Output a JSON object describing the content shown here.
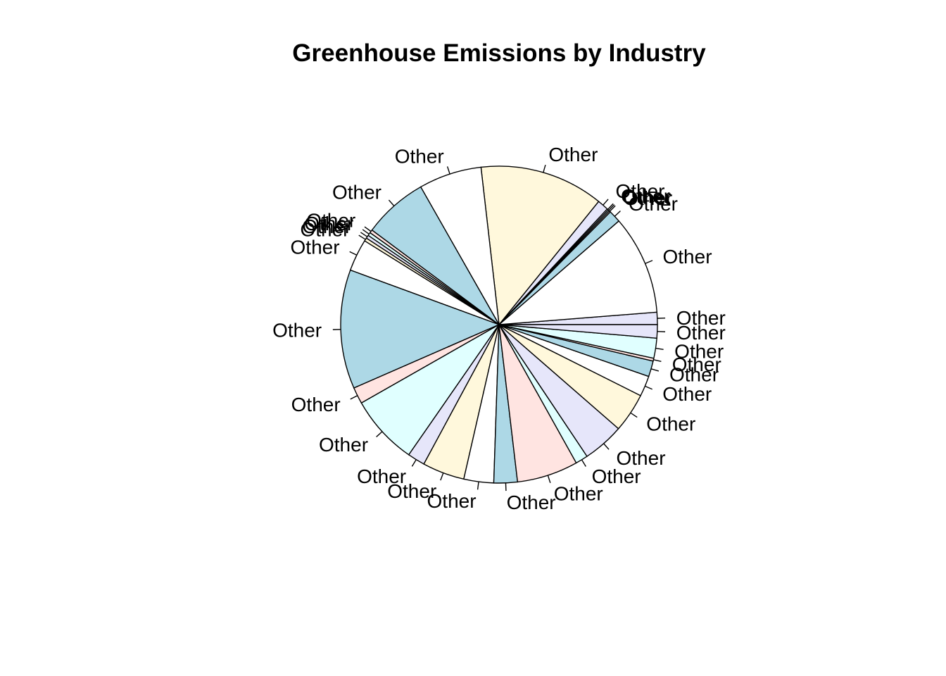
{
  "chart_data": {
    "type": "pie",
    "title": "Greenhouse Emissions by Industry",
    "start_angle_deg": 0,
    "direction": "counterclockwise",
    "palette": [
      "#FFFFFF",
      "#ADD8E6",
      "#FFE4E1",
      "#E0FFFF",
      "#E6E6FA",
      "#FFF8DC"
    ],
    "slices": [
      {
        "label": "Other",
        "value": 0.0115,
        "color": "#E6E6FA"
      },
      {
        "label": "Other",
        "value": 0.0925,
        "color": "#FFFFFF"
      },
      {
        "label": "Other",
        "value": 0.0115,
        "color": "#ADD8E6"
      },
      {
        "label": "Other",
        "value": 0.0013,
        "color": "#FFE4E1"
      },
      {
        "label": "Other",
        "value": 0.0013,
        "color": "#E0FFFF"
      },
      {
        "label": "Other",
        "value": 0.0013,
        "color": "#E6E6FA"
      },
      {
        "label": "Other",
        "value": 0.0105,
        "color": "#E6E6FA"
      },
      {
        "label": "Other",
        "value": 0.1159,
        "color": "#FFF8DC"
      },
      {
        "label": "Other",
        "value": 0.0588,
        "color": "#FFFFFF"
      },
      {
        "label": "Other",
        "value": 0.0604,
        "color": "#ADD8E6"
      },
      {
        "label": "Other",
        "value": 0.003,
        "color": "#FFE4E1"
      },
      {
        "label": "Other",
        "value": 0.003,
        "color": "#E0FFFF"
      },
      {
        "label": "Other",
        "value": 0.003,
        "color": "#E6E6FA"
      },
      {
        "label": "Other",
        "value": 0.003,
        "color": "#FFF8DC"
      },
      {
        "label": "Other",
        "value": 0.03,
        "color": "#FFFFFF"
      },
      {
        "label": "Other",
        "value": 0.1113,
        "color": "#ADD8E6"
      },
      {
        "label": "Other",
        "value": 0.0154,
        "color": "#FFE4E1"
      },
      {
        "label": "Other",
        "value": 0.0652,
        "color": "#E0FFFF"
      },
      {
        "label": "Other",
        "value": 0.0163,
        "color": "#E6E6FA"
      },
      {
        "label": "Other",
        "value": 0.0394,
        "color": "#FFF8DC"
      },
      {
        "label": "Other",
        "value": 0.0279,
        "color": "#FFFFFF"
      },
      {
        "label": "Other",
        "value": 0.022,
        "color": "#ADD8E6"
      },
      {
        "label": "Other",
        "value": 0.0572,
        "color": "#FFE4E1"
      },
      {
        "label": "Other",
        "value": 0.0116,
        "color": "#E0FFFF"
      },
      {
        "label": "Other",
        "value": 0.0387,
        "color": "#E6E6FA"
      },
      {
        "label": "Other",
        "value": 0.0367,
        "color": "#FFF8DC"
      },
      {
        "label": "Other",
        "value": 0.0192,
        "color": "#FFFFFF"
      },
      {
        "label": "Other",
        "value": 0.0147,
        "color": "#ADD8E6"
      },
      {
        "label": "Other",
        "value": 0.0027,
        "color": "#FFE4E1"
      },
      {
        "label": "Other",
        "value": 0.0187,
        "color": "#E0FFFF"
      },
      {
        "label": "Other",
        "value": 0.0125,
        "color": "#E6E6FA"
      }
    ]
  }
}
